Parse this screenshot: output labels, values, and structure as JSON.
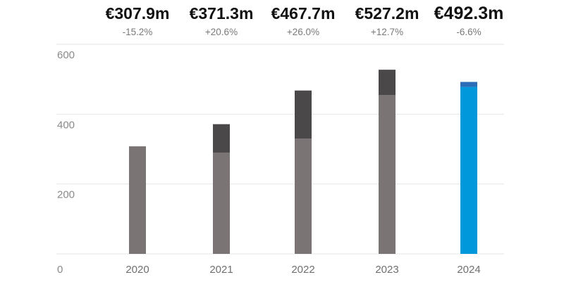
{
  "chart_data": {
    "type": "bar",
    "stacked": true,
    "categories": [
      "2020",
      "2021",
      "2022",
      "2023",
      "2024"
    ],
    "totals": [
      307.9,
      371.3,
      467.7,
      527.2,
      492.3
    ],
    "base": [
      307.9,
      290,
      330,
      455,
      478
    ],
    "top": [
      0,
      81.3,
      137.7,
      72.2,
      14.3
    ],
    "value_labels": [
      "€307.9m",
      "€371.3m",
      "€467.7m",
      "€527.2m",
      "€492.3m"
    ],
    "change_labels": [
      "-15.2%",
      "+20.6%",
      "+26.0%",
      "+12.7%",
      "-6.6%"
    ],
    "highlight_index": 4,
    "yticks": [
      "0",
      "200",
      "400",
      "600"
    ],
    "ylim": [
      0,
      600
    ],
    "grid": true,
    "title": "",
    "xlabel": "",
    "ylabel": "",
    "colors": {
      "base": "#7a7574",
      "top": "#4a4849",
      "highlight_base": "#0098da",
      "highlight_top": "#2c6db5",
      "grid": "#e6e6e6"
    }
  }
}
